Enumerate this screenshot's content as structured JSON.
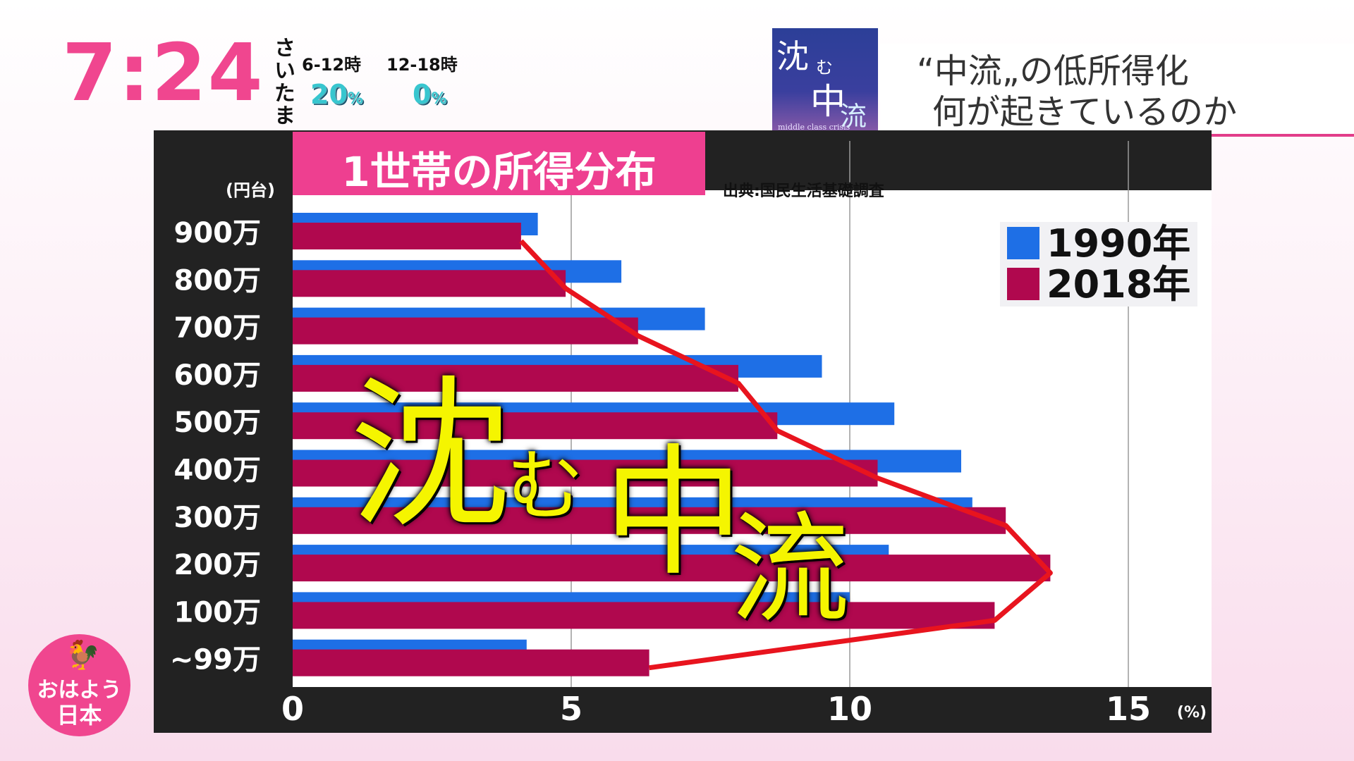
{
  "clock": "7:24",
  "weather": {
    "city": "さいたま",
    "periods": [
      {
        "label": "6-12時",
        "value": "20",
        "unit": "%"
      },
      {
        "label": "12-18時",
        "value": "0",
        "unit": "%"
      }
    ]
  },
  "badge": {
    "line1": "沈",
    "line2": "む",
    "line3": "中",
    "line4": "流",
    "subtitle": "middle class crisis"
  },
  "header": {
    "line1": "“中流„の低所得化",
    "line2": "何が起きているのか"
  },
  "chart_data": {
    "type": "bar",
    "orientation": "horizontal",
    "title": "1世帯の所得分布",
    "source": "出典:国民生活基礎調査",
    "y_unit": "(円台)",
    "x_unit": "(%)",
    "categories": [
      "900万",
      "800万",
      "700万",
      "600万",
      "500万",
      "400万",
      "300万",
      "200万",
      "100万",
      "~99万"
    ],
    "series": [
      {
        "name": "1990年",
        "color": "#1e6fe6",
        "values": [
          4.4,
          5.9,
          7.4,
          9.5,
          10.8,
          12.0,
          12.2,
          10.7,
          10.0,
          4.2
        ]
      },
      {
        "name": "2018年",
        "color": "#b0084e",
        "values": [
          4.1,
          4.9,
          6.2,
          8.0,
          8.7,
          10.5,
          12.8,
          13.6,
          12.6,
          6.4
        ]
      }
    ],
    "xlim": [
      0,
      17
    ],
    "xticks": [
      0,
      5,
      10,
      15
    ],
    "grid": true,
    "legend": "top-right",
    "trend_line_color": "#e8141e"
  },
  "overlay_text": {
    "big1": "沈",
    "small": "む",
    "big2": "中",
    "big3": "流"
  },
  "logo": {
    "line1": "おはよう",
    "line2": "日本"
  }
}
